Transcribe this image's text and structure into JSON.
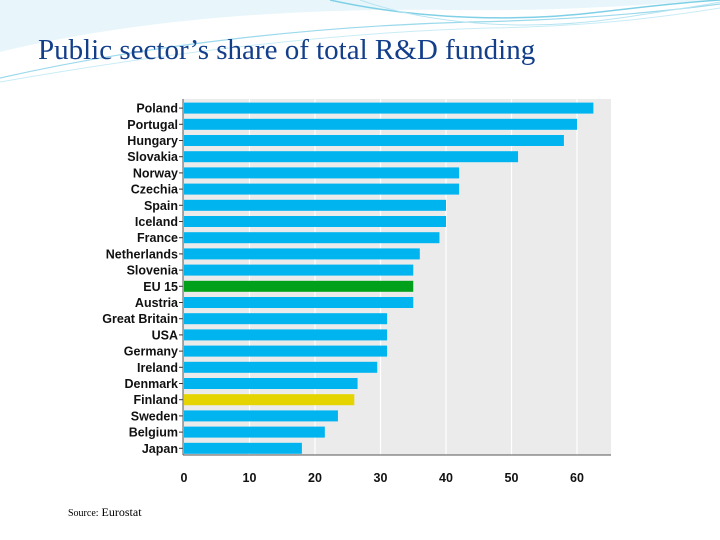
{
  "slide": {
    "title": "Public sector’s share of total R&D funding",
    "source_prefix": "Source:",
    "source_name": "Eurostat"
  },
  "colors": {
    "default_bar": "#00b4f0",
    "eu15_bar": "#00a01a",
    "finland_bar": "#e6d400",
    "plot_bg": "#ebebeb",
    "gridline": "#ffffff",
    "title": "#123e8a",
    "accent_wave": "#7fd0e6"
  },
  "chart_data": {
    "type": "bar",
    "orientation": "horizontal",
    "title": "Public sector’s share of total R&D funding",
    "xlabel": "",
    "ylabel": "",
    "xlim": [
      0,
      65
    ],
    "xticks": [
      0,
      10,
      20,
      30,
      40,
      50,
      60
    ],
    "grid": true,
    "categories": [
      "Poland",
      "Portugal",
      "Hungary",
      "Slovakia",
      "Norway",
      "Czechia",
      "Spain",
      "Iceland",
      "France",
      "Netherlands",
      "Slovenia",
      "EU 15",
      "Austria",
      "Great Britain",
      "USA",
      "Germany",
      "Ireland",
      "Denmark",
      "Finland",
      "Sweden",
      "Belgium",
      "Japan"
    ],
    "values": [
      62.5,
      60.0,
      58.0,
      51.0,
      42.0,
      42.0,
      40.0,
      40.0,
      39.0,
      36.0,
      35.0,
      35.0,
      35.0,
      31.0,
      31.0,
      31.0,
      29.5,
      26.5,
      26.0,
      23.5,
      21.5,
      18.0
    ],
    "highlight": {
      "EU 15": "eu15_bar",
      "Finland": "finland_bar"
    }
  }
}
